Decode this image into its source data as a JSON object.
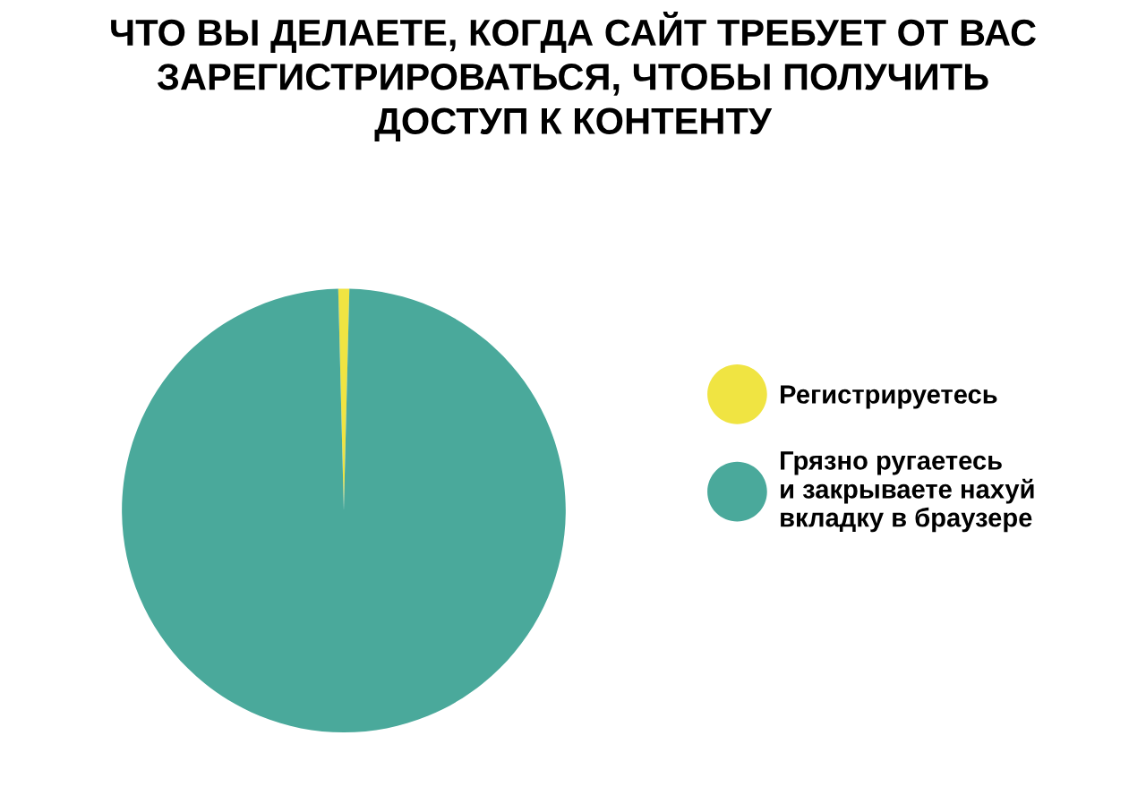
{
  "chart_data": {
    "type": "pie",
    "title": "ЧТО ВЫ ДЕЛАЕТЕ, КОГДА САЙТ ТРЕБУЕТ ОТ ВАС\nЗАРЕГИСТРИРОВАТЬСЯ, ЧТОБЫ ПОЛУЧИТЬ\nДОСТУП К КОНТЕНТУ",
    "categories": [
      "Регистрируетесь",
      "Грязно ругаетесь\nи закрываете нахуй\nвкладку в браузере"
    ],
    "values": [
      0.8,
      99.2
    ],
    "colors": [
      "#f0e442",
      "#4aa99b"
    ],
    "legend": "right"
  }
}
